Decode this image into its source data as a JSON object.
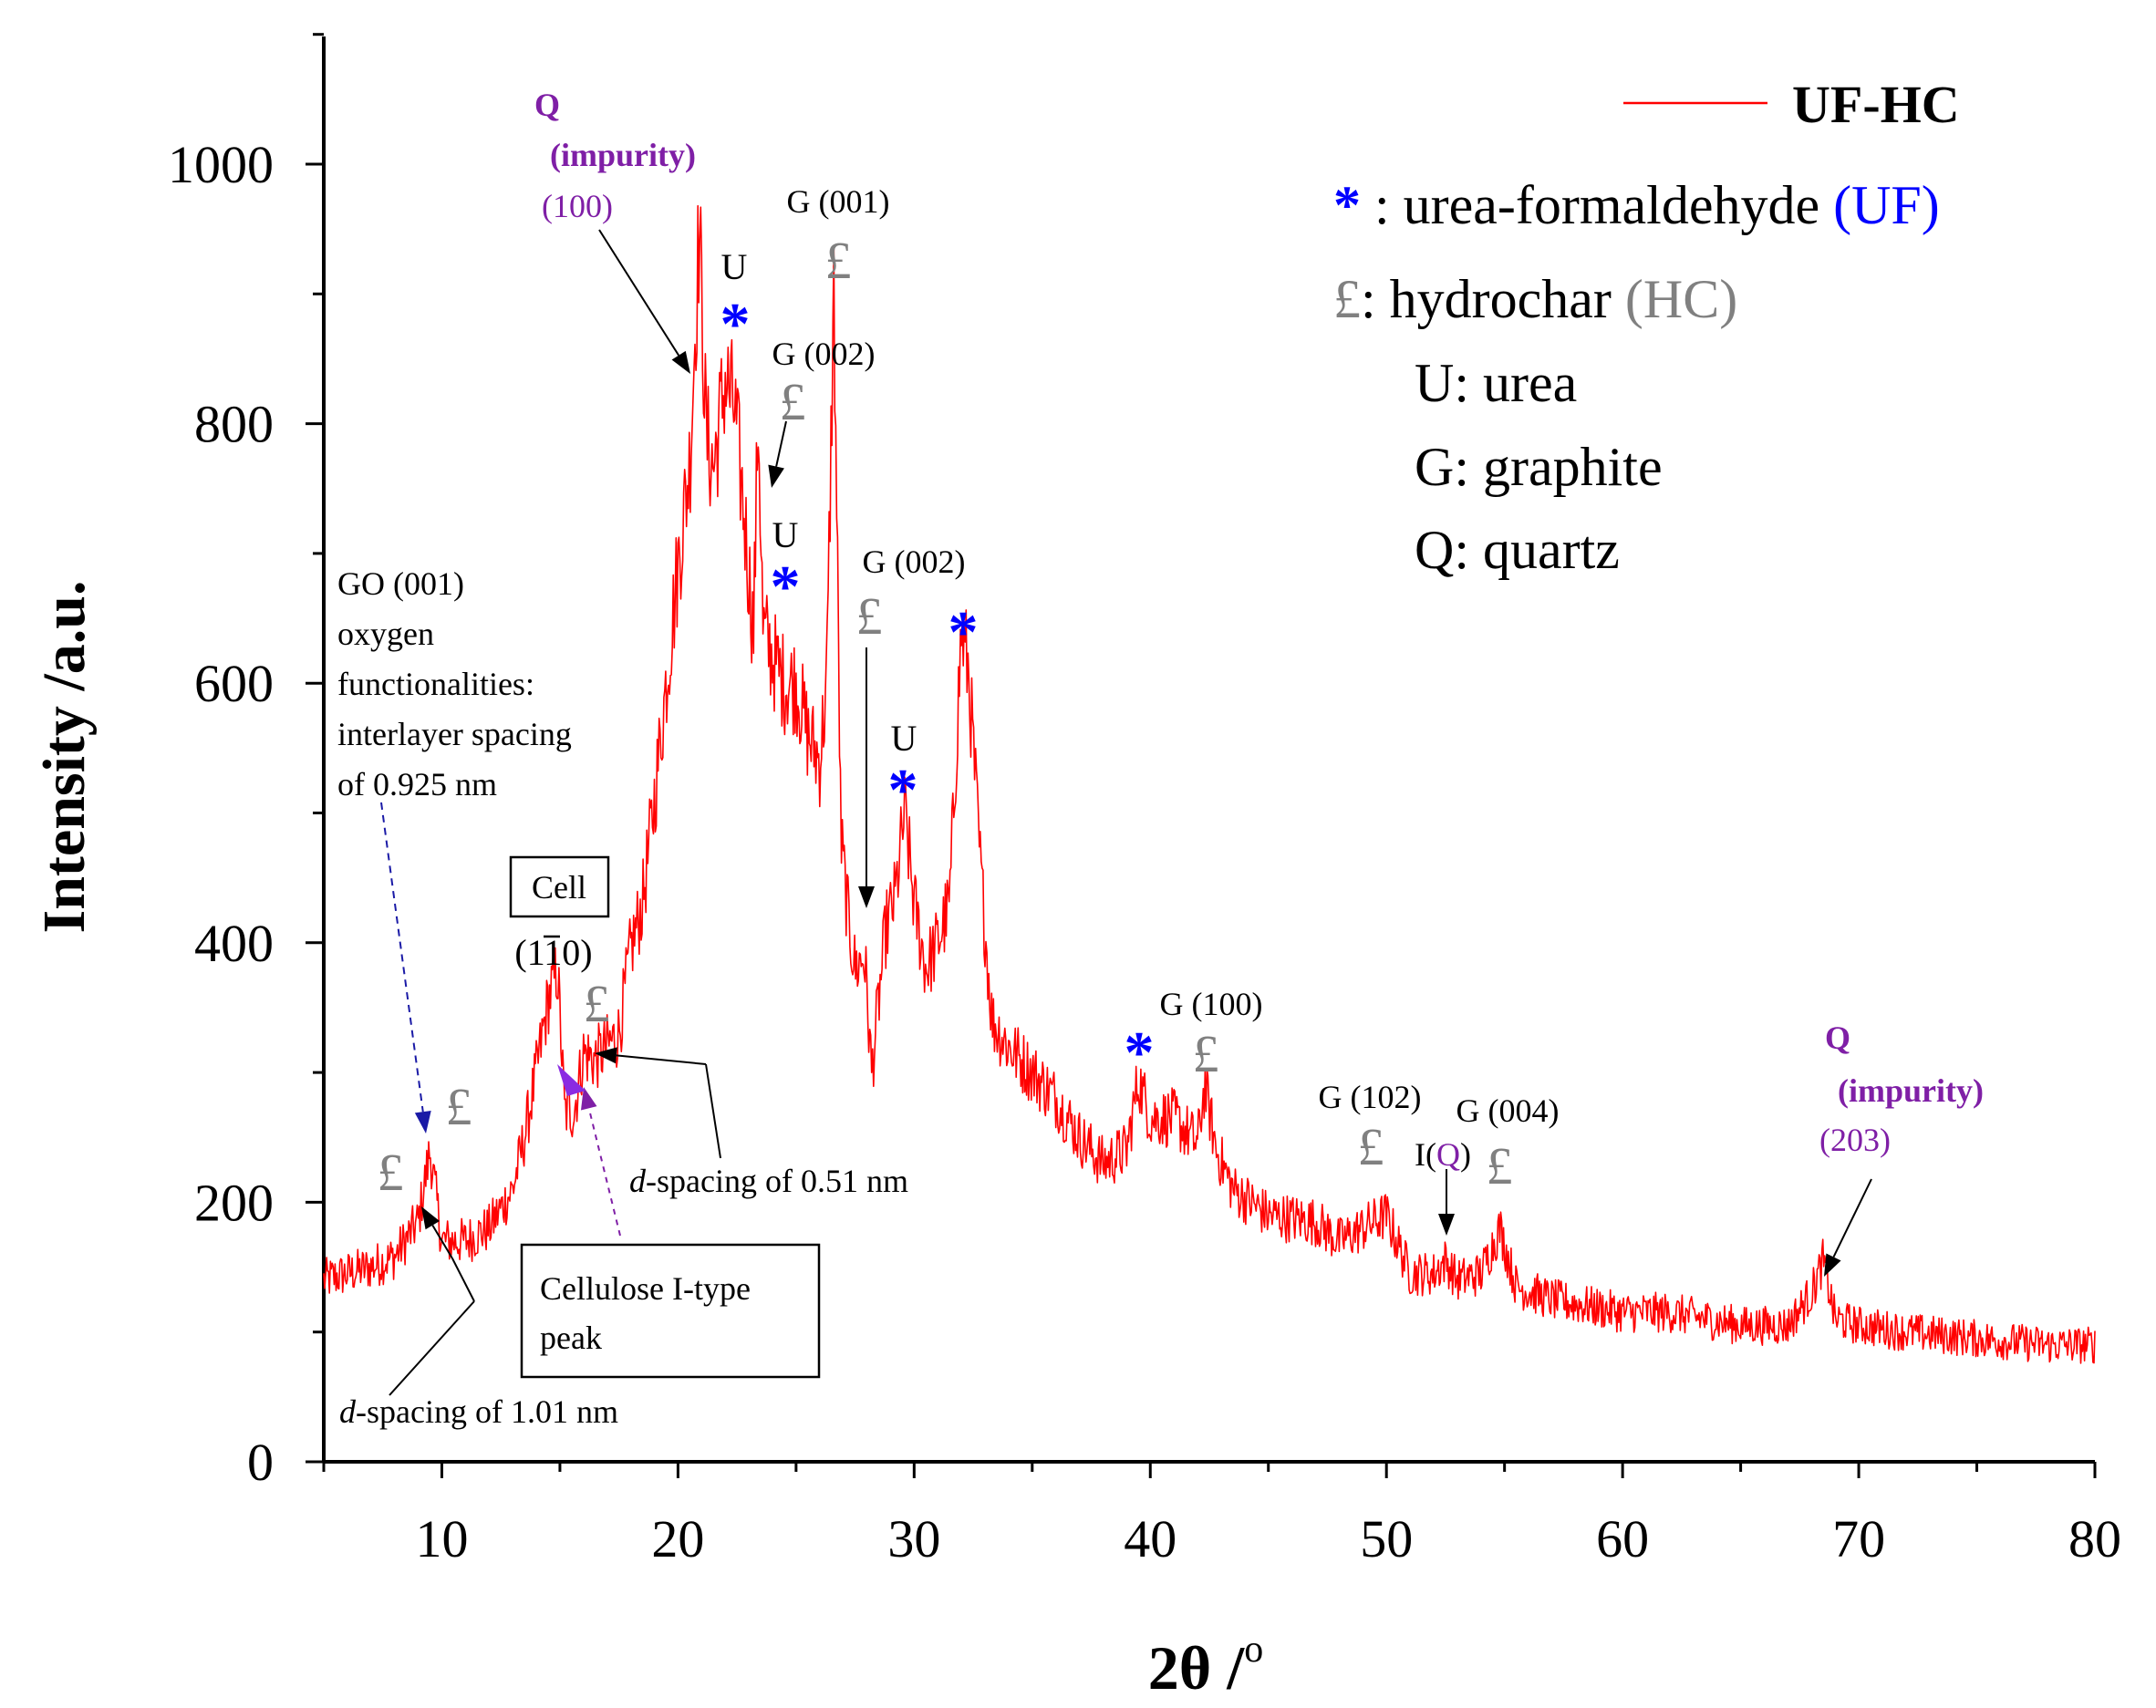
{
  "chart_data": {
    "type": "line",
    "title": "",
    "xlabel": "2θ /",
    "xlabel_superscript": "o",
    "ylabel": "Intensity /a.u.",
    "xlim": [
      5,
      80
    ],
    "ylim": [
      0,
      1100
    ],
    "x_ticks": [
      10,
      20,
      30,
      40,
      50,
      60,
      70,
      80
    ],
    "y_ticks": [
      0,
      200,
      400,
      600,
      800,
      1000
    ],
    "series": [
      {
        "name": "UF-HC",
        "color": "#ff0000",
        "x": [
          5,
          6,
          7,
          8,
          9,
          9.5,
          10,
          11,
          12,
          13,
          13.5,
          14,
          14.5,
          14.9,
          15.2,
          15.6,
          16,
          16.5,
          17,
          17.5,
          18,
          18.5,
          19,
          19.5,
          20,
          20.5,
          20.9,
          21.2,
          21.5,
          22,
          22.4,
          22.8,
          23.2,
          23.4,
          23.6,
          24,
          24.5,
          25,
          25.5,
          26,
          26.3,
          26.6,
          26.9,
          27.2,
          27.5,
          27.9,
          28.2,
          28.5,
          28.8,
          29.2,
          29.6,
          30,
          30.5,
          31,
          31.5,
          32,
          32.3,
          32.8,
          33.3,
          34,
          35,
          36,
          37,
          38,
          39,
          39.5,
          40,
          41,
          42,
          42.3,
          42.8,
          43.5,
          45,
          47,
          48,
          49,
          50,
          51,
          52,
          52.5,
          53,
          54,
          54.8,
          55.5,
          57,
          60,
          62,
          65,
          67,
          68,
          68.5,
          69,
          70,
          72,
          75,
          78,
          80
        ],
        "y": [
          140,
          145,
          150,
          158,
          185,
          240,
          170,
          170,
          180,
          210,
          250,
          300,
          355,
          380,
          270,
          270,
          315,
          310,
          320,
          330,
          395,
          430,
          510,
          600,
          690,
          770,
          950,
          790,
          765,
          835,
          810,
          730,
          640,
          810,
          640,
          620,
          600,
          600,
          560,
          540,
          600,
          905,
          480,
          420,
          380,
          390,
          300,
          355,
          410,
          435,
          500,
          430,
          380,
          400,
          430,
          640,
          610,
          460,
          340,
          320,
          300,
          280,
          250,
          230,
          240,
          295,
          265,
          265,
          245,
          290,
          240,
          210,
          190,
          185,
          170,
          180,
          190,
          145,
          145,
          155,
          140,
          145,
          180,
          135,
          125,
          115,
          115,
          105,
          105,
          130,
          155,
          110,
          105,
          100,
          95,
          90,
          90
        ]
      }
    ],
    "legend": {
      "position": "top-right",
      "series_label": "UF-HC",
      "entries": [
        {
          "symbol": "*",
          "symbol_color": "#0000ff",
          "text": " : urea-formaldehyde ",
          "tag": "(UF)",
          "tag_color": "#0000ff"
        },
        {
          "symbol": "£",
          "symbol_color": "#808080",
          "text": ": hydrochar ",
          "tag": "(HC)",
          "tag_color": "#808080"
        },
        {
          "symbol": "",
          "symbol_color": "#000000",
          "text": "U: urea",
          "tag": "",
          "tag_color": "#000000"
        },
        {
          "symbol": "",
          "symbol_color": "#000000",
          "text": "G: graphite",
          "tag": "",
          "tag_color": "#000000"
        },
        {
          "symbol": "",
          "symbol_color": "#000000",
          "text": "Q: quartz",
          "tag": "",
          "tag_color": "#000000"
        }
      ]
    },
    "annotations": {
      "q100": {
        "label": "Q",
        "impurity": "(impurity)",
        "miller": "(100)"
      },
      "q203": {
        "label": "Q",
        "impurity": "(impurity)",
        "miller": "(203)"
      },
      "g001": "G (001)",
      "g002_a": "G (002)",
      "g002_b": "G (002)",
      "g100": "G (100)",
      "g102": "G (102)",
      "g004": "G (004)",
      "u": "U",
      "iq": {
        "prefix": "I(",
        "q": "Q",
        "suffix": ")"
      },
      "go_lines": [
        "GO (001)",
        "oxygen",
        "functionalities:",
        "interlayer spacing",
        "of 0.925 nm"
      ],
      "cell_box": "Cell",
      "cell_miller": {
        "open": "(1",
        "bar_digit": "1",
        "close": "0)"
      },
      "cellulose_lines": [
        "Cellulose I-type",
        "peak"
      ],
      "d051": {
        "d": "d",
        "rest": "-spacing of 0.51 nm"
      },
      "d101": {
        "d": "d",
        "rest": "-spacing of 1.01 nm"
      },
      "star": "*",
      "pound": "£"
    },
    "colors": {
      "line": "#ff0000",
      "uf": "#0000ff",
      "hc": "#808080",
      "quartz": "#7f1fa6",
      "axis": "#000000"
    }
  }
}
